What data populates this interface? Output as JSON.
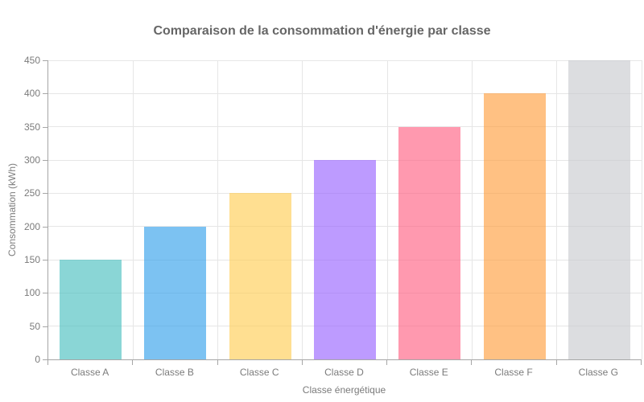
{
  "page": {
    "background": "#ffffff"
  },
  "chart_data": {
    "type": "bar",
    "title": "Comparaison de la consommation d'énergie par classe",
    "xlabel": "Classe énergétique",
    "ylabel": "Consommation (kWh)",
    "categories": [
      "Classe A",
      "Classe B",
      "Classe C",
      "Classe D",
      "Classe E",
      "Classe F",
      "Classe G"
    ],
    "values": [
      150,
      200,
      250,
      300,
      350,
      400,
      450
    ],
    "bar_colors": [
      "rgba(75,192,192,0.65)",
      "rgba(54,162,235,0.65)",
      "rgba(255,206,86,0.65)",
      "rgba(153,102,255,0.65)",
      "rgba(255,99,132,0.65)",
      "rgba(255,159,64,0.65)",
      "rgba(201,203,207,0.65)"
    ],
    "ylim": [
      0,
      450
    ],
    "yticks": [
      0,
      50,
      100,
      150,
      200,
      250,
      300,
      350,
      400,
      450
    ],
    "grid": "on",
    "legend": "none",
    "grid_color": "#e6e6e6",
    "axis_color": "#a6a6a6",
    "title_color": "#666666",
    "tick_label_color": "#7b7b7b"
  }
}
